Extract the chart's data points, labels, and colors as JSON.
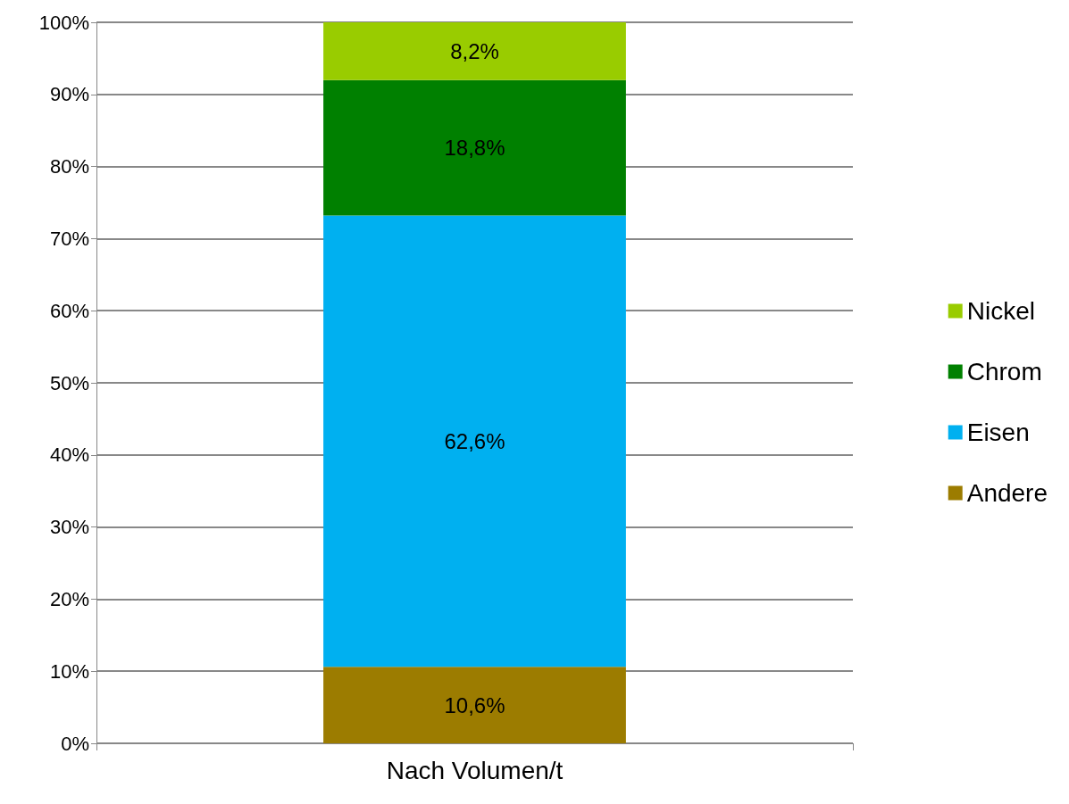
{
  "chart_data": {
    "type": "bar",
    "stacked": true,
    "xlabel": null,
    "categories": [
      "Nach Volumen/t"
    ],
    "series": [
      {
        "name": "Andere",
        "color": "#9c7c00",
        "values": [
          10.6
        ],
        "value_labels": [
          "10,6%"
        ]
      },
      {
        "name": "Eisen",
        "color": "#00b0f0",
        "values": [
          62.6
        ],
        "value_labels": [
          "62,6%"
        ]
      },
      {
        "name": "Chrom",
        "color": "#008000",
        "values": [
          18.8
        ],
        "value_labels": [
          "18,8%"
        ]
      },
      {
        "name": "Nickel",
        "color": "#99cc00",
        "values": [
          8.2
        ],
        "value_labels": [
          "8,2%"
        ]
      }
    ],
    "ylim": [
      0,
      100
    ],
    "yticks": [
      {
        "value": 0,
        "label": "0%"
      },
      {
        "value": 10,
        "label": "10%"
      },
      {
        "value": 20,
        "label": "20%"
      },
      {
        "value": 30,
        "label": "30%"
      },
      {
        "value": 40,
        "label": "40%"
      },
      {
        "value": 50,
        "label": "50%"
      },
      {
        "value": 60,
        "label": "60%"
      },
      {
        "value": 70,
        "label": "70%"
      },
      {
        "value": 80,
        "label": "80%"
      },
      {
        "value": 90,
        "label": "90%"
      },
      {
        "value": 100,
        "label": "100%"
      }
    ],
    "grid": "y",
    "legend": "right"
  }
}
